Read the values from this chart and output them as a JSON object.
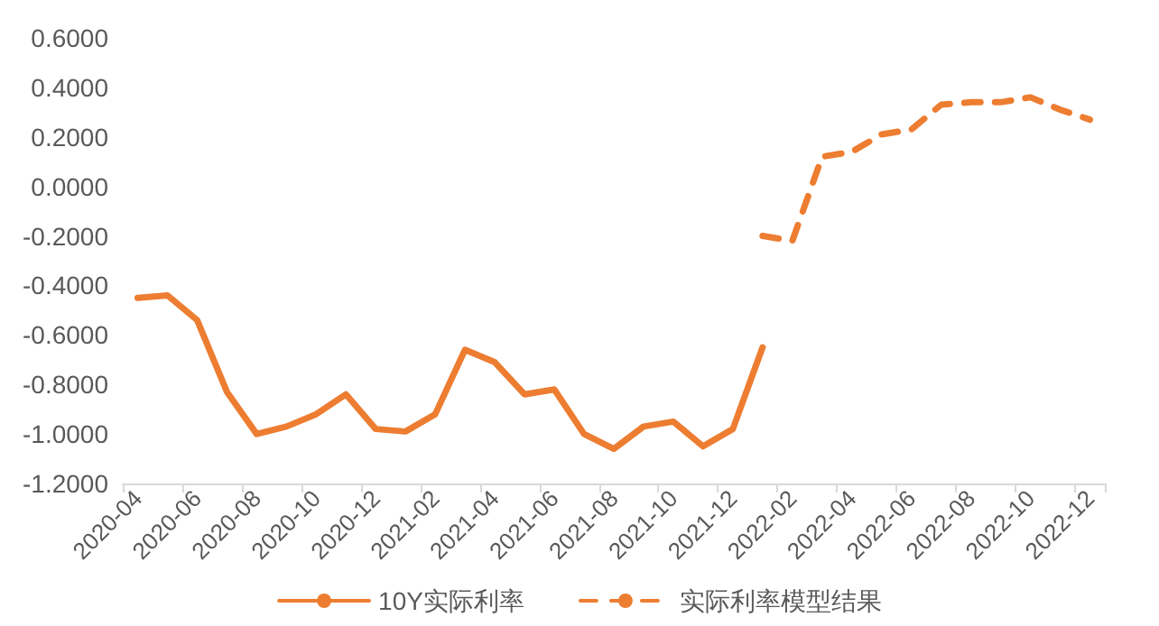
{
  "chart_data": {
    "type": "line",
    "categories": [
      "2020-04",
      null,
      "2020-06",
      null,
      "2020-08",
      null,
      "2020-10",
      null,
      "2020-12",
      null,
      "2021-02",
      null,
      "2021-04",
      null,
      "2021-06",
      null,
      "2021-08",
      null,
      "2021-10",
      null,
      "2021-12",
      null,
      "2022-02",
      null,
      "2022-04",
      null,
      "2022-06",
      null,
      "2022-08",
      null,
      "2022-10",
      null,
      "2022-12"
    ],
    "series": [
      {
        "name": "10Y实际利率",
        "color": "#ed7d31",
        "line_style": "solid",
        "values": [
          -0.45,
          -0.44,
          -0.54,
          -0.83,
          -1.0,
          -0.97,
          -0.92,
          -0.84,
          -0.98,
          -0.99,
          -0.92,
          -0.66,
          -0.71,
          -0.84,
          -0.82,
          -1.0,
          -1.06,
          -0.97,
          -0.95,
          -1.05,
          -0.98,
          -0.65,
          null,
          null,
          null,
          null,
          null,
          null,
          null,
          null,
          null,
          null,
          null
        ]
      },
      {
        "name": "实际利率模型结果",
        "color": "#ed7d31",
        "line_style": "dashed",
        "values": [
          null,
          null,
          null,
          null,
          null,
          null,
          null,
          null,
          null,
          null,
          null,
          null,
          null,
          null,
          null,
          null,
          null,
          null,
          null,
          null,
          null,
          -0.2,
          -0.22,
          0.12,
          0.14,
          0.21,
          0.23,
          0.33,
          0.34,
          0.34,
          0.36,
          0.31,
          0.27
        ]
      }
    ],
    "ylim": [
      -1.2,
      0.6
    ],
    "yticks": [
      {
        "value": -1.2,
        "label": "-1.2000"
      },
      {
        "value": -1.0,
        "label": "-1.0000"
      },
      {
        "value": -0.8,
        "label": "-0.8000"
      },
      {
        "value": -0.6,
        "label": "-0.6000"
      },
      {
        "value": -0.4,
        "label": "-0.4000"
      },
      {
        "value": -0.2,
        "label": "-0.2000"
      },
      {
        "value": 0,
        "label": "0.0000"
      },
      {
        "value": 0.2,
        "label": "0.2000"
      },
      {
        "value": 0.4,
        "label": "0.4000"
      },
      {
        "value": 0.6,
        "label": "0.6000"
      }
    ],
    "grid": false,
    "legend": "bottom",
    "marker": "none"
  }
}
